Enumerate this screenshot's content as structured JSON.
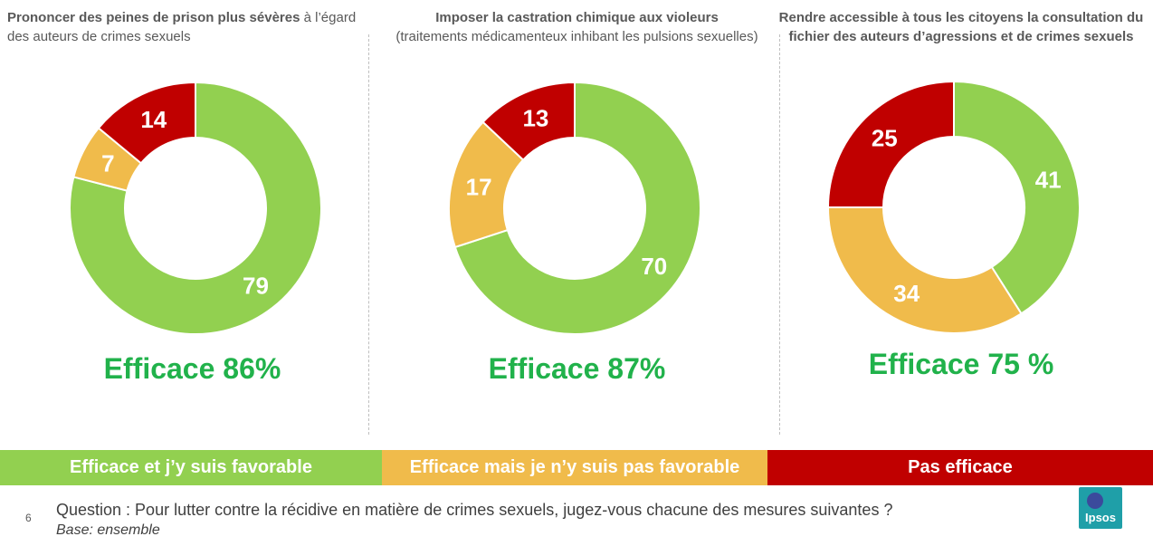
{
  "colors": {
    "green": "#92d050",
    "orange": "#f0bb4b",
    "red": "#c00000",
    "efficace": "#21b24b"
  },
  "chart_data": [
    {
      "type": "pie",
      "title_bold": "Prononcer des peines de prison plus sévères",
      "title_rest": " à l’égard des auteurs de crimes sexuels",
      "categories": [
        "Efficace et j’y suis favorable",
        "Efficace mais je n’y suis pas favorable",
        "Pas efficace"
      ],
      "values": [
        79,
        7,
        14
      ],
      "efficace_label": "Efficace 86%"
    },
    {
      "type": "pie",
      "title_bold": "Imposer la castration chimique aux violeurs",
      "title_rest": "(traitements médicamenteux inhibant les pulsions sexuelles)",
      "categories": [
        "Efficace et j’y suis favorable",
        "Efficace mais je n’y suis pas favorable",
        "Pas efficace"
      ],
      "values": [
        70,
        17,
        13
      ],
      "efficace_label": "Efficace 87%"
    },
    {
      "type": "pie",
      "title_bold": "Rendre accessible à tous les citoyens la consultation du fichier des auteurs d’agressions et de crimes sexuels",
      "title_rest": "",
      "categories": [
        "Efficace et j’y suis favorable",
        "Efficace mais je n’y suis pas favorable",
        "Pas efficace"
      ],
      "values": [
        41,
        34,
        25
      ],
      "efficace_label": "Efficace 75 %"
    }
  ],
  "legend": [
    "Efficace et j’y suis favorable",
    "Efficace mais je n’y suis pas favorable",
    "Pas efficace"
  ],
  "footer": {
    "page_number": "6",
    "question": "Question : Pour lutter contre la récidive en matière de crimes sexuels, jugez-vous chacune des mesures suivantes ?",
    "base": "Base: ensemble"
  },
  "logo": {
    "text": "Ipsos"
  }
}
